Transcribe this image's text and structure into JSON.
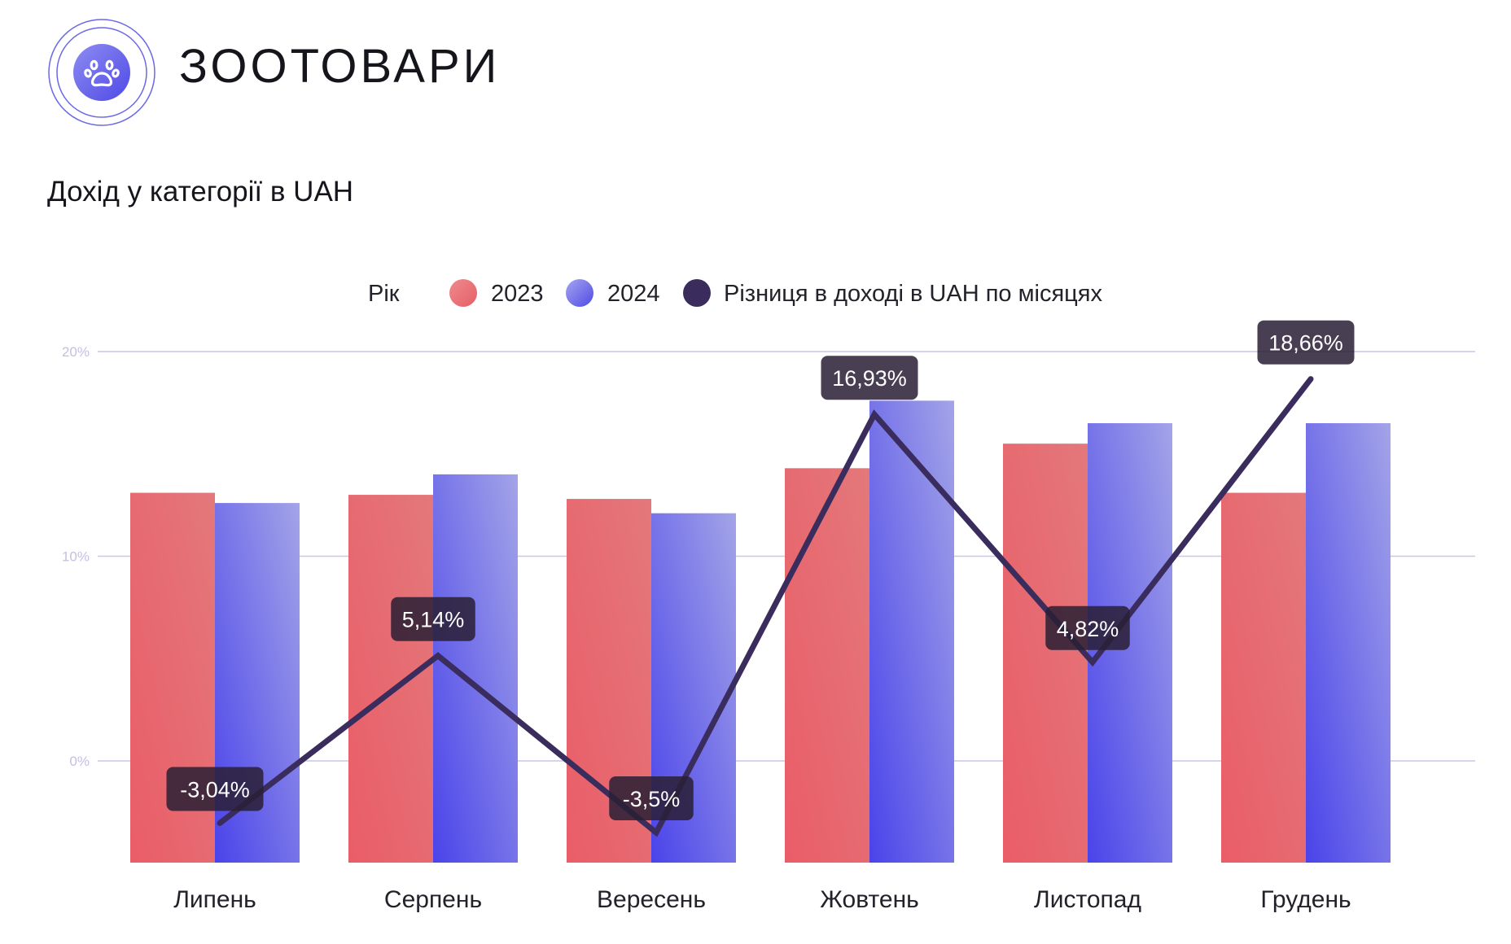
{
  "brand": {
    "name": "ЗООТОВАРИ",
    "icon": "paw-icon"
  },
  "colors": {
    "series_2023": "#e8676c",
    "series_2024": "#5a55ea",
    "difference_line": "#3a2d5e",
    "gridline": "#c9c6ea",
    "label_bg": "#2a2036",
    "logo_ring": "#6b68e8"
  },
  "chart_data": {
    "type": "bar",
    "title": "Дохід у категорії в UAH",
    "legend_title": "Рік",
    "legend_position": "top-center",
    "grid": true,
    "categories": [
      "Липень",
      "Серпень",
      "Вересень",
      "Жовтень",
      "Листопад",
      "Грудень"
    ],
    "yticks": [
      {
        "value": 0,
        "label": "0%"
      },
      {
        "value": 10,
        "label": "10%"
      },
      {
        "value": 20,
        "label": "20%"
      }
    ],
    "ylim": [
      -5,
      20
    ],
    "series": [
      {
        "name": "2023",
        "type": "bar",
        "values": [
          13.1,
          13.0,
          12.8,
          14.3,
          15.5,
          13.1
        ]
      },
      {
        "name": "2024",
        "type": "bar",
        "values": [
          12.6,
          14.0,
          12.1,
          17.6,
          16.5,
          16.5
        ]
      },
      {
        "name": "Різниця в доході в UAH по місяцях",
        "type": "line",
        "values": [
          -3.04,
          5.14,
          -3.5,
          16.93,
          4.82,
          18.66
        ],
        "labels": [
          "-3,04%",
          "5,14%",
          "-3,5%",
          "16,93%",
          "4,82%",
          "18,66%"
        ]
      }
    ]
  }
}
